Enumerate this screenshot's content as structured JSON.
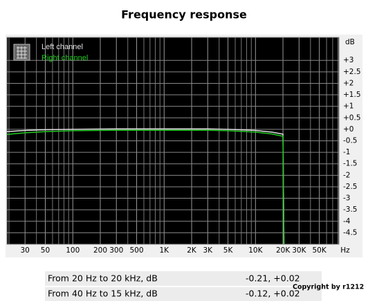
{
  "chart_data": {
    "type": "line",
    "title": "Frequency response",
    "x_label": "Hz",
    "y_label": "dB",
    "xscale": "log",
    "xlim": [
      19,
      82000
    ],
    "ylim": [
      -5,
      4
    ],
    "xticks": [
      30,
      50,
      100,
      200,
      300,
      500,
      {
        "value": 1000,
        "label": "1K"
      },
      {
        "value": 2000,
        "label": "2K"
      },
      {
        "value": 3000,
        "label": "3K"
      },
      {
        "value": 5000,
        "label": "5K"
      },
      {
        "value": 10000,
        "label": "10K"
      },
      {
        "value": 20000,
        "label": "20K"
      },
      {
        "value": 30000,
        "label": "30K"
      },
      {
        "value": 50000,
        "label": "50K"
      }
    ],
    "x_minor_grid": [
      20,
      40,
      60,
      70,
      80,
      90,
      400,
      600,
      700,
      800,
      900,
      4000,
      6000,
      7000,
      8000,
      9000,
      40000,
      60000,
      70000,
      80000
    ],
    "yticks": [
      {
        "value": 3,
        "label": "+3"
      },
      {
        "value": 2.5,
        "label": "+2.5"
      },
      {
        "value": 2,
        "label": "+2"
      },
      {
        "value": 1.5,
        "label": "+1.5"
      },
      {
        "value": 1,
        "label": "+1"
      },
      {
        "value": 0.5,
        "label": "+0.5"
      },
      {
        "value": 0,
        "label": "+0"
      },
      -0.5,
      -1,
      -1.5,
      -2,
      -2.5,
      -3,
      -3.5,
      -4,
      -4.5
    ],
    "grid": true,
    "legend": "upper left",
    "x": [
      19,
      30,
      50,
      100,
      300,
      1000,
      3000,
      5000,
      10000,
      15000,
      20000,
      20500
    ],
    "series": [
      {
        "name": "Left channel",
        "color": "#e0e0e0",
        "values": [
          -0.1,
          -0.05,
          -0.02,
          0.0,
          0.02,
          0.02,
          0.02,
          0.0,
          -0.05,
          -0.12,
          -0.21,
          -5
        ]
      },
      {
        "name": "Right channel",
        "color": "#22cc22",
        "values": [
          -0.22,
          -0.15,
          -0.1,
          -0.06,
          -0.04,
          -0.04,
          -0.04,
          -0.06,
          -0.12,
          -0.2,
          -0.3,
          -5
        ]
      }
    ]
  },
  "table": {
    "rows": [
      [
        "From 20 Hz to 20 kHz, dB",
        "-0.21, +0.02"
      ],
      [
        "From 40 Hz to 15 kHz, dB",
        "-0.12, +0.02"
      ]
    ]
  },
  "copyright": "Copyright by r1212"
}
